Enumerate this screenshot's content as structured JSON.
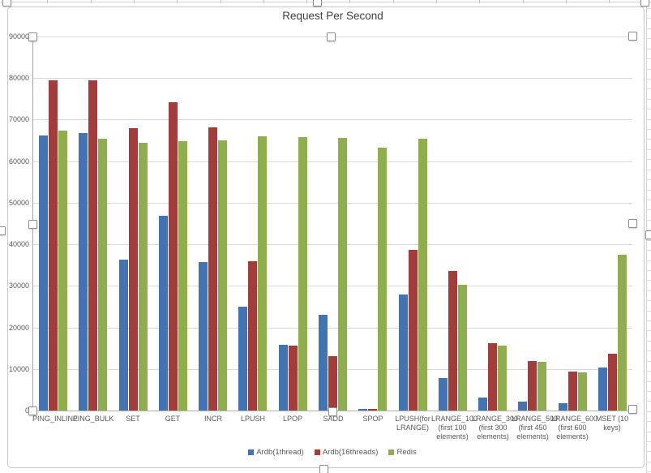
{
  "title": "Request Per Second",
  "chart_data": {
    "type": "bar",
    "title": "Request Per Second",
    "categories": [
      "PING_INLINE",
      "PING_BULK",
      "SET",
      "GET",
      "INCR",
      "LPUSH",
      "LPOP",
      "SADD",
      "SPOP",
      "LPUSH(for LRANGE)",
      "LRANGE_100 (first 100 elements)",
      "LRANGE_300 (first 300 elements)",
      "LRANGE_500 (first 450 elements)",
      "LRANGE_600 (first 600 elements)",
      "MSET (10 keys)"
    ],
    "series": [
      {
        "name": "Ardb(1thread)",
        "color": "#4273b2",
        "values": [
          66200,
          66700,
          36300,
          46900,
          35700,
          24900,
          15900,
          23100,
          400,
          27900,
          7900,
          3200,
          2200,
          1700,
          10300
        ]
      },
      {
        "name": "Ardb(16threads)",
        "color": "#a53c3c",
        "values": [
          79500,
          79400,
          67900,
          74200,
          68100,
          35900,
          15700,
          13000,
          400,
          38700,
          33600,
          16300,
          11900,
          9400,
          13600
        ]
      },
      {
        "name": "Redis",
        "color": "#8fae4d",
        "values": [
          67300,
          65400,
          64500,
          64900,
          65100,
          66000,
          65800,
          65600,
          63200,
          65400,
          30300,
          15700,
          11700,
          9200,
          37500
        ]
      }
    ],
    "xlabel": "",
    "ylabel": "",
    "ylim": [
      0,
      90000
    ],
    "ytick_step": 10000,
    "y_ticks": [
      "0",
      "10000",
      "20000",
      "30000",
      "40000",
      "50000",
      "60000",
      "70000",
      "80000",
      "90000"
    ],
    "grid": true,
    "legend_position": "bottom"
  },
  "colors": {
    "gridline": "#d9d9d9",
    "axis_line": "#a6a6a6",
    "tick_text": "#595959",
    "title_text": "#404040",
    "chart_border": "#c9c9c9"
  }
}
